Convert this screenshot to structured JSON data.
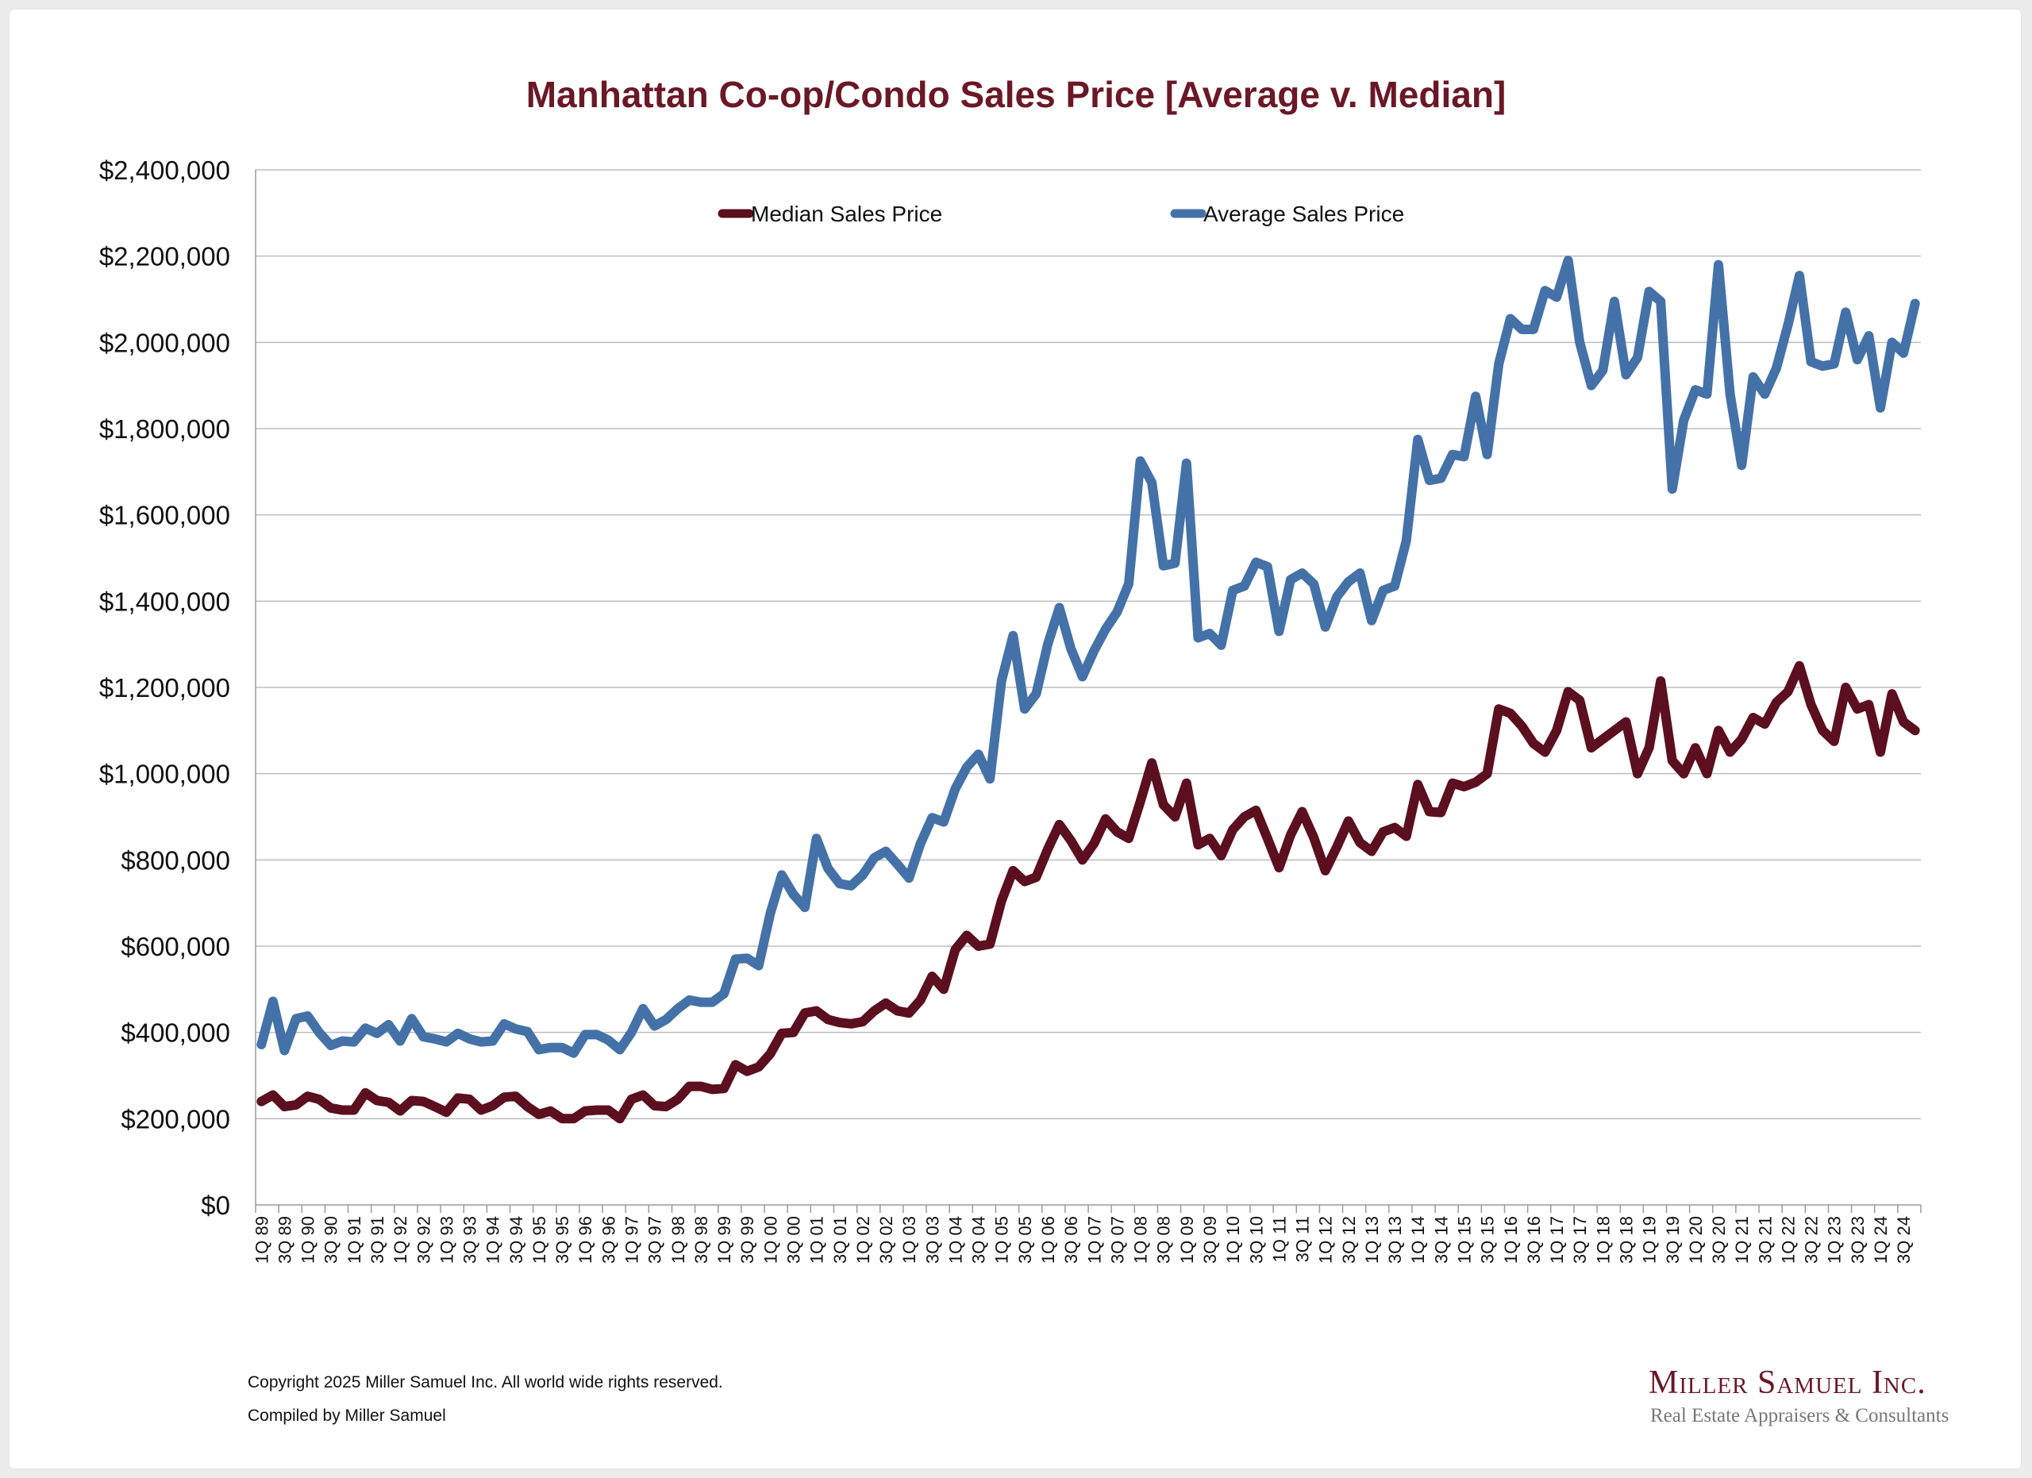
{
  "chart_data": {
    "type": "line",
    "title": "Manhattan Co-op/Condo Sales Price [Average v. Median]",
    "xlabel": "",
    "ylabel": "",
    "ylim": [
      0,
      2400000
    ],
    "y_ticks": [
      "$0",
      "$200,000",
      "$400,000",
      "$600,000",
      "$800,000",
      "$1,000,000",
      "$1,200,000",
      "$1,400,000",
      "$1,600,000",
      "$1,800,000",
      "$2,000,000",
      "$2,200,000",
      "$2,400,000"
    ],
    "y_tick_values": [
      0,
      200000,
      400000,
      600000,
      800000,
      1000000,
      1200000,
      1400000,
      1600000,
      1800000,
      2000000,
      2200000,
      2400000
    ],
    "grid": true,
    "legend_position": "top-center",
    "categories": [
      "1Q 89",
      "2Q 89",
      "3Q 89",
      "4Q 89",
      "1Q 90",
      "2Q 90",
      "3Q 90",
      "4Q 90",
      "1Q 91",
      "2Q 91",
      "3Q 91",
      "4Q 91",
      "1Q 92",
      "2Q 92",
      "3Q 92",
      "4Q 92",
      "1Q 93",
      "2Q 93",
      "3Q 93",
      "4Q 93",
      "1Q 94",
      "2Q 94",
      "3Q 94",
      "4Q 94",
      "1Q 95",
      "2Q 95",
      "3Q 95",
      "4Q 95",
      "1Q 96",
      "2Q 96",
      "3Q 96",
      "4Q 96",
      "1Q 97",
      "2Q 97",
      "3Q 97",
      "4Q 97",
      "1Q 98",
      "2Q 98",
      "3Q 98",
      "4Q 98",
      "1Q 99",
      "2Q 99",
      "3Q 99",
      "4Q 99",
      "1Q 00",
      "2Q 00",
      "3Q 00",
      "4Q 00",
      "1Q 01",
      "2Q 01",
      "3Q 01",
      "4Q 01",
      "1Q 02",
      "2Q 02",
      "3Q 02",
      "4Q 02",
      "1Q 03",
      "2Q 03",
      "3Q 03",
      "4Q 03",
      "1Q 04",
      "2Q 04",
      "3Q 04",
      "4Q 04",
      "1Q 05",
      "2Q 05",
      "3Q 05",
      "4Q 05",
      "1Q 06",
      "2Q 06",
      "3Q 06",
      "4Q 06",
      "1Q 07",
      "2Q 07",
      "3Q 07",
      "4Q 07",
      "1Q 08",
      "2Q 08",
      "3Q 08",
      "4Q 08",
      "1Q 09",
      "2Q 09",
      "3Q 09",
      "4Q 09",
      "1Q 10",
      "2Q 10",
      "3Q 10",
      "4Q 10",
      "1Q 11",
      "2Q 11",
      "3Q 11",
      "4Q 11",
      "1Q 12",
      "2Q 12",
      "3Q 12",
      "4Q 12",
      "1Q 13",
      "2Q 13",
      "3Q 13",
      "4Q 13",
      "1Q 14",
      "2Q 14",
      "3Q 14",
      "4Q 14",
      "1Q 15",
      "2Q 15",
      "3Q 15",
      "4Q 15",
      "1Q 16",
      "2Q 16",
      "3Q 16",
      "4Q 16",
      "1Q 17",
      "2Q 17",
      "3Q 17",
      "4Q 17",
      "1Q 18",
      "2Q 18",
      "3Q 18",
      "4Q 18",
      "1Q 19",
      "2Q 19",
      "3Q 19",
      "4Q 19",
      "1Q 20",
      "2Q 20",
      "3Q 20",
      "4Q 20",
      "1Q 21",
      "2Q 21",
      "3Q 21",
      "4Q 21",
      "1Q 22",
      "2Q 22",
      "3Q 22",
      "4Q 22",
      "1Q 23",
      "2Q 23",
      "3Q 23",
      "4Q 23",
      "1Q 24",
      "2Q 24",
      "3Q 24",
      "4Q 24"
    ],
    "x_tick_labels": [
      "1Q 89",
      "3Q 89",
      "1Q 90",
      "3Q 90",
      "1Q 91",
      "3Q 91",
      "1Q 92",
      "3Q 92",
      "1Q 93",
      "3Q 93",
      "1Q 94",
      "3Q 94",
      "1Q 95",
      "3Q 95",
      "1Q 96",
      "3Q 96",
      "1Q 97",
      "3Q 97",
      "1Q 98",
      "3Q 98",
      "1Q 99",
      "3Q 99",
      "1Q 00",
      "3Q 00",
      "1Q 01",
      "3Q 01",
      "1Q 02",
      "3Q 02",
      "1Q 03",
      "3Q 03",
      "1Q 04",
      "3Q 04",
      "1Q 05",
      "3Q 05",
      "1Q 06",
      "3Q 06",
      "1Q 07",
      "3Q 07",
      "1Q 08",
      "3Q 08",
      "1Q 09",
      "3Q 09",
      "1Q 10",
      "3Q 10",
      "1Q 11",
      "3Q 11",
      "1Q 12",
      "3Q 12",
      "1Q 13",
      "3Q 13",
      "1Q 14",
      "3Q 14",
      "1Q 15",
      "3Q 15",
      "1Q 16",
      "3Q 16",
      "1Q 17",
      "3Q 17",
      "1Q 18",
      "3Q 18",
      "1Q 19",
      "3Q 19",
      "1Q 20",
      "3Q 20",
      "1Q 21",
      "3Q 21",
      "1Q 22",
      "3Q 22",
      "1Q 23",
      "3Q 23",
      "1Q 24",
      "3Q 24"
    ],
    "series": [
      {
        "name": "Median Sales Price",
        "color": "#5c0f1f",
        "values": [
          240000,
          255000,
          228000,
          232000,
          252000,
          245000,
          225000,
          220000,
          220000,
          260000,
          242000,
          238000,
          218000,
          242000,
          240000,
          228000,
          215000,
          248000,
          245000,
          220000,
          230000,
          250000,
          252000,
          228000,
          210000,
          218000,
          200000,
          200000,
          218000,
          220000,
          220000,
          200000,
          245000,
          255000,
          230000,
          228000,
          245000,
          275000,
          275000,
          268000,
          270000,
          325000,
          310000,
          320000,
          350000,
          398000,
          400000,
          445000,
          450000,
          430000,
          423000,
          420000,
          425000,
          450000,
          468000,
          450000,
          445000,
          475000,
          530000,
          500000,
          592000,
          625000,
          600000,
          605000,
          705000,
          775000,
          750000,
          760000,
          825000,
          882000,
          845000,
          800000,
          838000,
          895000,
          865000,
          850000,
          935000,
          1025000,
          928000,
          900000,
          978000,
          835000,
          850000,
          810000,
          870000,
          900000,
          915000,
          850000,
          782000,
          858000,
          912000,
          852000,
          775000,
          830000,
          890000,
          840000,
          820000,
          865000,
          875000,
          855000,
          975000,
          912000,
          910000,
          978000,
          970000,
          980000,
          1000000,
          1150000,
          1140000,
          1110000,
          1070000,
          1050000,
          1100000,
          1190000,
          1170000,
          1060000,
          1080000,
          1100000,
          1120000,
          1000000,
          1060000,
          1215000,
          1030000,
          1000000,
          1060000,
          1000000,
          1100000,
          1050000,
          1080000,
          1130000,
          1115000,
          1165000,
          1190000,
          1250000,
          1160000,
          1100000,
          1075000,
          1200000,
          1150000,
          1160000,
          1050000,
          1185000,
          1120000,
          1100000
        ]
      },
      {
        "name": "Average Sales Price",
        "color": "#4472a8",
        "values": [
          372000,
          472000,
          358000,
          432000,
          438000,
          400000,
          370000,
          380000,
          378000,
          410000,
          398000,
          418000,
          380000,
          432000,
          390000,
          385000,
          378000,
          398000,
          385000,
          378000,
          380000,
          420000,
          408000,
          402000,
          360000,
          365000,
          365000,
          352000,
          395000,
          395000,
          382000,
          360000,
          400000,
          455000,
          415000,
          430000,
          455000,
          475000,
          470000,
          470000,
          490000,
          570000,
          572000,
          555000,
          675000,
          765000,
          720000,
          690000,
          850000,
          780000,
          745000,
          740000,
          765000,
          805000,
          820000,
          790000,
          758000,
          838000,
          898000,
          888000,
          965000,
          1015000,
          1045000,
          988000,
          1215000,
          1320000,
          1150000,
          1185000,
          1300000,
          1385000,
          1290000,
          1225000,
          1285000,
          1335000,
          1375000,
          1440000,
          1725000,
          1675000,
          1482000,
          1488000,
          1720000,
          1315000,
          1325000,
          1298000,
          1425000,
          1435000,
          1490000,
          1480000,
          1330000,
          1450000,
          1465000,
          1440000,
          1340000,
          1410000,
          1445000,
          1465000,
          1355000,
          1425000,
          1435000,
          1540000,
          1775000,
          1680000,
          1685000,
          1740000,
          1735000,
          1875000,
          1740000,
          1950000,
          2055000,
          2030000,
          2030000,
          2120000,
          2105000,
          2190000,
          2000000,
          1900000,
          1935000,
          2095000,
          1925000,
          1965000,
          2118000,
          2095000,
          1660000,
          1820000,
          1890000,
          1880000,
          2180000,
          1880000,
          1715000,
          1920000,
          1880000,
          1940000,
          2040000,
          2155000,
          1955000,
          1945000,
          1950000,
          2070000,
          1960000,
          2015000,
          1848000,
          2000000,
          1975000,
          2090000
        ]
      }
    ]
  },
  "footer": {
    "copyright": "Copyright 2025 Miller Samuel Inc.  All world wide rights reserved.",
    "compiled": "Compiled by Miller Samuel"
  },
  "logo": {
    "name": "Miller Samuel Inc.",
    "tagline": "Real Estate Appraisers & Consultants"
  }
}
